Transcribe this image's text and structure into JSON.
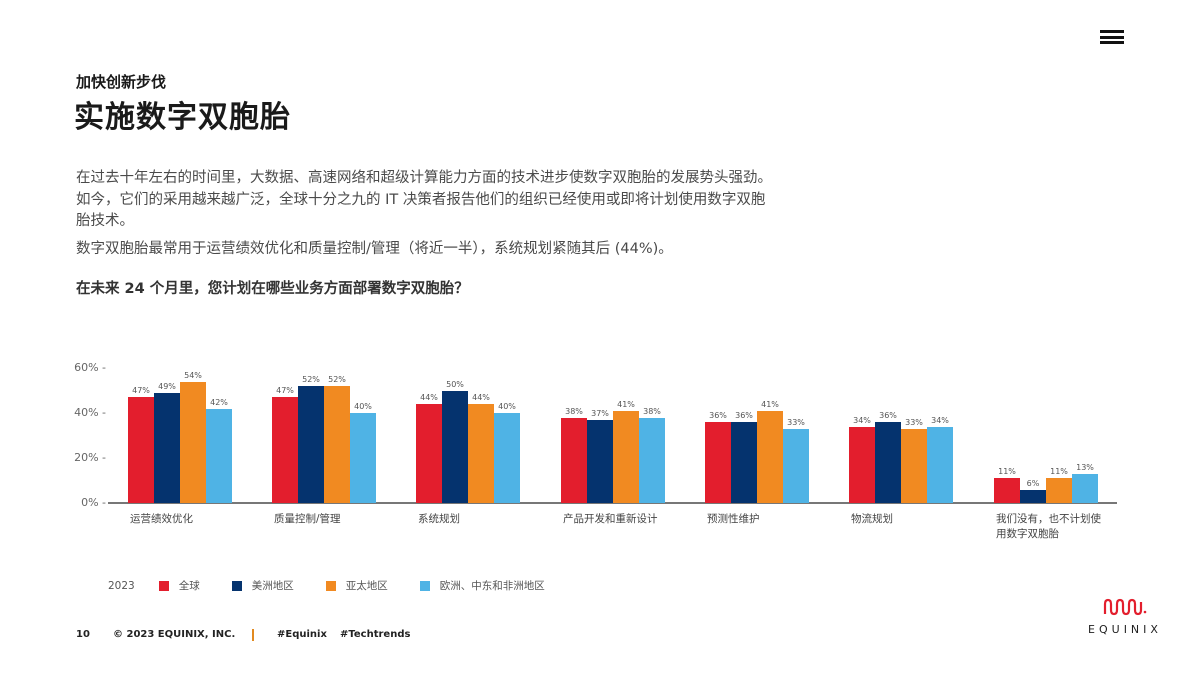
{
  "header": {
    "kicker": "加快创新步伐",
    "title": "实施数字双胞胎",
    "menu_icon": "hamburger-menu-icon"
  },
  "body": {
    "paragraph1": "在过去十年左右的时间里，大数据、高速网络和超级计算能力方面的技术进步使数字双胞胎的发展势头强劲。如今，它们的采用越来越广泛，全球十分之九的 IT 决策者报告他们的组织已经使用或即将计划使用数字双胞胎技术。",
    "paragraph2": "数字双胞胎最常用于运营绩效优化和质量控制/管理（将近一半），系统规划紧随其后 (44%)。",
    "question": "在未来 24 个月里，您计划在哪些业务方面部署数字双胞胎？"
  },
  "chart_data": {
    "type": "bar",
    "title": "在未来 24 个月里，您计划在哪些业务方面部署数字双胞胎？",
    "xlabel": "",
    "ylabel": "",
    "ylim": [
      0,
      60
    ],
    "yticks": [
      "0%",
      "20%",
      "40%",
      "60%"
    ],
    "grid": false,
    "legend_position": "bottom-left",
    "legend_year": "2023",
    "categories": [
      "运营绩效优化",
      "质量控制/管理",
      "系统规划",
      "产品开发和重新设计",
      "预测性维护",
      "物流规划",
      "我们没有，也不计划使用数字双胞胎"
    ],
    "category_lines": [
      [
        "运营绩效优化"
      ],
      [
        "质量控制/管理"
      ],
      [
        "系统规划"
      ],
      [
        "产品开发和重新设计"
      ],
      [
        "预测性维护"
      ],
      [
        "物流规划"
      ],
      [
        "我们没有，也不计划使",
        "用数字双胞胎"
      ]
    ],
    "series": [
      {
        "name": "全球",
        "color": "#e31e2d",
        "values": [
          47,
          47,
          44,
          38,
          36,
          34,
          11
        ]
      },
      {
        "name": "美洲地区",
        "color": "#05336e",
        "values": [
          49,
          52,
          50,
          37,
          36,
          36,
          6
        ]
      },
      {
        "name": "亚太地区",
        "color": "#f18a21",
        "values": [
          54,
          52,
          44,
          41,
          41,
          33,
          11
        ]
      },
      {
        "name": "欧洲、中东和非洲地区",
        "color": "#4fb3e5",
        "values": [
          42,
          40,
          40,
          38,
          33,
          34,
          13
        ]
      }
    ]
  },
  "footer": {
    "page_number": "10",
    "copyright": "© 2023 EQUINIX, INC.",
    "hashtag1": "#Equinix",
    "hashtag2": "#Techtrends"
  },
  "logo": {
    "wordmark": "EQUINIX",
    "brand_color": "#e31e2d"
  }
}
